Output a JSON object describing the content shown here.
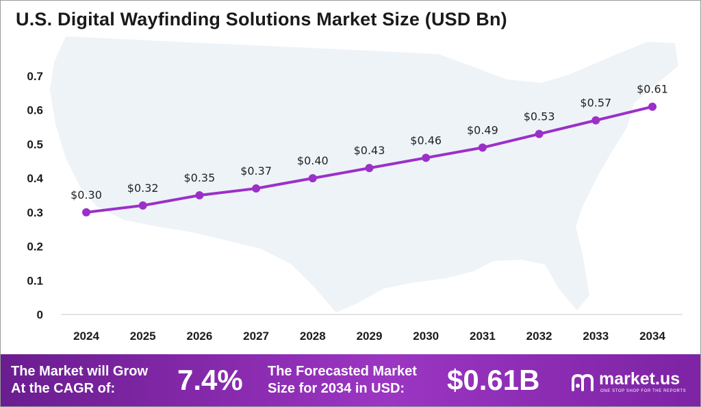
{
  "title": "U.S. Digital Wayfinding Solutions Market Size (USD Bn)",
  "colors": {
    "line": "#9b30c8",
    "marker": "#9b30c8",
    "footer": "#8a2bb0",
    "map": "#eef3f8"
  },
  "chart_data": {
    "type": "line",
    "title": "U.S. Digital Wayfinding Solutions Market Size (USD Bn)",
    "xlabel": "",
    "ylabel": "",
    "categories": [
      "2024",
      "2025",
      "2026",
      "2027",
      "2028",
      "2029",
      "2030",
      "2031",
      "2032",
      "2033",
      "2034"
    ],
    "values": [
      0.3,
      0.32,
      0.35,
      0.37,
      0.4,
      0.43,
      0.46,
      0.49,
      0.53,
      0.57,
      0.61
    ],
    "data_labels": [
      "$0.30",
      "$0.32",
      "$0.35",
      "$0.37",
      "$0.40",
      "$0.43",
      "$0.46",
      "$0.49",
      "$0.53",
      "$0.57",
      "$0.61"
    ],
    "y_ticks": [
      "0",
      "0.1",
      "0.2",
      "0.3",
      "0.4",
      "0.5",
      "0.6",
      "0.7"
    ],
    "ylim": [
      0,
      0.7
    ],
    "grid": false,
    "legend": "none"
  },
  "footer": {
    "cagr_label_line1": "The Market will Grow",
    "cagr_label_line2": "At the CAGR of:",
    "cagr_value": "7.4%",
    "forecast_label_line1": "The Forecasted Market",
    "forecast_label_line2": "Size for 2034 in USD:",
    "forecast_value": "$0.61B"
  },
  "brand": {
    "name": "market.us",
    "tagline": "ONE STOP SHOP FOR THE REPORTS",
    "icon": "market-us-logo-icon"
  }
}
